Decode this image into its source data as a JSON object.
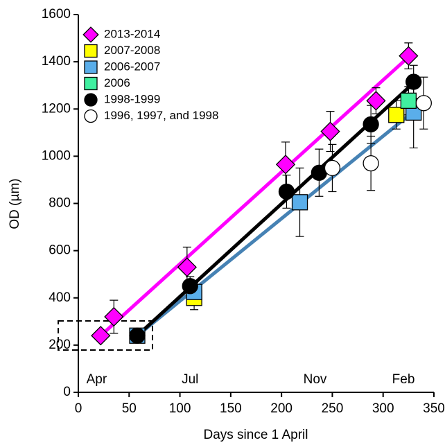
{
  "chart_data": {
    "type": "scatter",
    "xlabel": "Days since 1 April",
    "ylabel": "OD (µm)",
    "xlim": [
      0,
      350
    ],
    "xticks": [
      0,
      50,
      100,
      150,
      200,
      250,
      300,
      350
    ],
    "ylim": [
      0,
      1600
    ],
    "yticks": [
      0,
      200,
      400,
      600,
      800,
      1000,
      1200,
      1400,
      1600
    ],
    "legend": "top-left",
    "series": [
      {
        "name": "2013-2014",
        "color": "#ff00ff",
        "marker": "diamond",
        "x": [
          22,
          35,
          107,
          204,
          248,
          293,
          325
        ],
        "values": [
          240,
          320,
          530,
          965,
          1105,
          1235,
          1425
        ],
        "errors": [
          null,
          70,
          85,
          95,
          85,
          55,
          55
        ]
      },
      {
        "name": "2007-2008",
        "color": "#ffff00",
        "marker": "square",
        "x": [
          114,
          313
        ],
        "values": [
          400,
          1175
        ],
        "errors": [
          50,
          60
        ]
      },
      {
        "name": "2006-2007",
        "color": "#5aaeea",
        "marker": "square",
        "x": [
          58,
          114,
          218,
          330
        ],
        "values": [
          240,
          425,
          805,
          1185
        ],
        "errors": [
          null,
          40,
          145,
          150
        ]
      },
      {
        "name": "2006",
        "color": "#40f0a0",
        "marker": "square",
        "x": [
          325
        ],
        "values": [
          1235
        ],
        "errors": [
          60
        ]
      },
      {
        "name": "1998-1999",
        "color": "#000000",
        "marker": "circle",
        "x": [
          58,
          110,
          205,
          237,
          288,
          330
        ],
        "values": [
          240,
          450,
          850,
          930,
          1135,
          1315
        ],
        "errors": [
          null,
          40,
          70,
          100,
          80,
          70
        ]
      },
      {
        "name": "1996, 1997, and 1998",
        "color": "#ffffff",
        "marker": "circle",
        "x": [
          250,
          288,
          340
        ],
        "values": [
          950,
          970,
          1225
        ],
        "errors": [
          100,
          115,
          110
        ]
      }
    ],
    "fit_lines": [
      {
        "color": "#4682b4",
        "x": [
          58,
          330
        ],
        "values": [
          240,
          1190
        ]
      },
      {
        "color": "#000000",
        "x": [
          58,
          330
        ],
        "values": [
          240,
          1310
        ]
      },
      {
        "color": "#ff00ff",
        "x": [
          22,
          325
        ],
        "values": [
          240,
          1420
        ]
      }
    ],
    "annotations": [
      {
        "text": "Apr",
        "x": 18
      },
      {
        "text": "Jul",
        "x": 110
      },
      {
        "text": "Nov",
        "x": 233
      },
      {
        "text": "Feb",
        "x": 320
      }
    ]
  }
}
